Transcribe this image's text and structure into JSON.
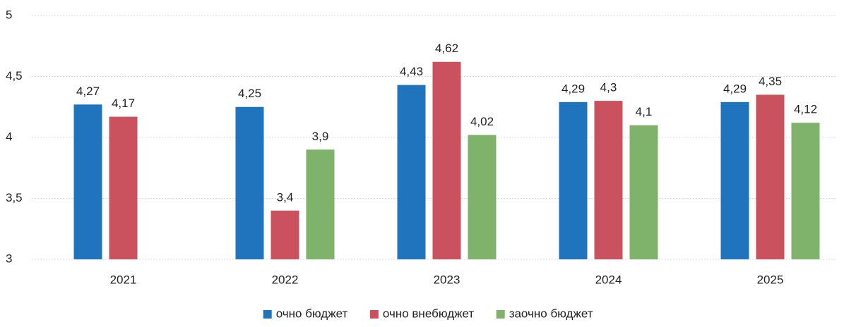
{
  "chart_data": {
    "type": "bar",
    "categories": [
      "2021",
      "2022",
      "2023",
      "2024",
      "2025"
    ],
    "series": [
      {
        "name": "очно бюджет",
        "color": "#1f74bd",
        "values": [
          4.27,
          4.25,
          4.43,
          4.29,
          4.29
        ],
        "value_labels": [
          "4,27",
          "4,25",
          "4,43",
          "4,29",
          "4,29"
        ]
      },
      {
        "name": "очно внебюджет",
        "color": "#c9525e",
        "values": [
          4.17,
          3.4,
          4.62,
          4.3,
          4.35
        ],
        "value_labels": [
          "4,17",
          "3,4",
          "4,62",
          "4,3",
          "4,35"
        ]
      },
      {
        "name": "заочно бюджет",
        "color": "#7fb36b",
        "values": [
          null,
          3.9,
          4.02,
          4.1,
          4.12
        ],
        "value_labels": [
          null,
          "3,9",
          "4,02",
          "4,1",
          "4,12"
        ]
      }
    ],
    "ylim": [
      3,
      5
    ],
    "yticks": [
      3,
      {
        "value": 3.5,
        "label": "3,5"
      },
      4,
      {
        "value": 4.5,
        "label": "4,5"
      },
      5
    ],
    "grid": true,
    "legend": "bottom"
  }
}
